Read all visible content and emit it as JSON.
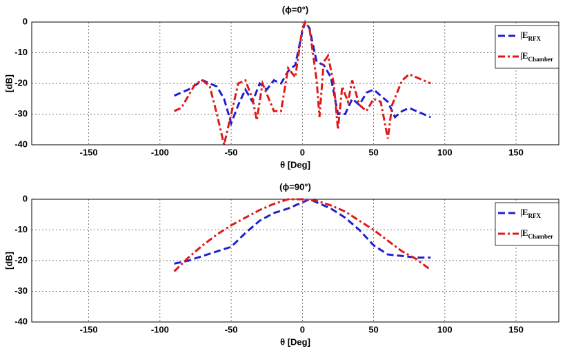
{
  "chart_data": [
    {
      "type": "line",
      "title": "(ϕ=0°)",
      "x_label": "θ [Deg]",
      "y_label": "[dB]",
      "xlim": [
        -190,
        180
      ],
      "ylim": [
        -40,
        0
      ],
      "xticks": [
        -150,
        -100,
        -50,
        0,
        50,
        100,
        150
      ],
      "yticks": [
        0,
        -10,
        -20,
        -30,
        -40
      ],
      "grid": true,
      "legend": "upper right",
      "series": [
        {
          "name": "|E",
          "name_sub": "RFX",
          "color": "#1f1fd0",
          "dash": "10 5",
          "x": [
            -90,
            -80,
            -70,
            -60,
            -55,
            -50,
            -45,
            -40,
            -35,
            -30,
            -25,
            -20,
            -15,
            -10,
            -5,
            0,
            2,
            5,
            10,
            15,
            20,
            25,
            30,
            35,
            40,
            45,
            50,
            55,
            60,
            65,
            70,
            75,
            80,
            90
          ],
          "values": [
            -24,
            -22,
            -19,
            -21,
            -25,
            -33,
            -27,
            -22,
            -26,
            -20,
            -22,
            -19,
            -20,
            -16,
            -14,
            -3,
            0,
            -2,
            -13,
            -14,
            -18,
            -30,
            -30,
            -25,
            -27,
            -23,
            -22,
            -24,
            -26,
            -31,
            -29,
            -28,
            -29,
            -31
          ]
        },
        {
          "name": "|E",
          "name_sub": "Chamber",
          "color": "#e01818",
          "dash": "10 4 3 4",
          "x": [
            -90,
            -85,
            -75,
            -70,
            -65,
            -60,
            -55,
            -50,
            -45,
            -40,
            -35,
            -32,
            -28,
            -20,
            -15,
            -10,
            -5,
            0,
            2,
            5,
            10,
            12,
            15,
            18,
            22,
            25,
            28,
            32,
            35,
            40,
            45,
            50,
            55,
            60,
            63,
            70,
            75,
            80,
            90
          ],
          "values": [
            -29,
            -28,
            -20,
            -19,
            -21,
            -30,
            -40,
            -30,
            -20,
            -19,
            -25,
            -32,
            -20,
            -29,
            -29,
            -15,
            -18,
            -2,
            0,
            -2,
            -19,
            -31,
            -13,
            -11,
            -20,
            -35,
            -21,
            -26,
            -19,
            -27,
            -29,
            -25,
            -26,
            -38,
            -27,
            -19,
            -17,
            -18,
            -20
          ]
        }
      ]
    },
    {
      "type": "line",
      "title": "(ϕ=90°)",
      "x_label": "θ [Deg]",
      "y_label": "[dB]",
      "xlim": [
        -190,
        180
      ],
      "ylim": [
        -40,
        0
      ],
      "xticks": [
        -150,
        -100,
        -50,
        0,
        50,
        100,
        150
      ],
      "yticks": [
        0,
        -10,
        -20,
        -30,
        -40
      ],
      "grid": true,
      "legend": "upper right",
      "series": [
        {
          "name": "|E",
          "name_sub": "RFX",
          "color": "#1f1fd0",
          "dash": "10 5",
          "x": [
            -90,
            -80,
            -70,
            -50,
            -40,
            -30,
            -20,
            -10,
            0,
            5,
            10,
            20,
            30,
            40,
            50,
            60,
            70,
            80,
            90
          ],
          "values": [
            -21,
            -20,
            -18.5,
            -15.5,
            -11,
            -7,
            -4.5,
            -3,
            -1,
            0,
            -1,
            -3,
            -6,
            -10,
            -15,
            -18,
            -18.5,
            -19,
            -19
          ]
        },
        {
          "name": "|E",
          "name_sub": "Chamber",
          "color": "#e01818",
          "dash": "10 4 3 4",
          "x": [
            -90,
            -80,
            -70,
            -60,
            -50,
            -40,
            -30,
            -20,
            -10,
            0,
            10,
            20,
            30,
            40,
            50,
            60,
            70,
            80,
            90
          ],
          "values": [
            -23.5,
            -19,
            -15,
            -11.5,
            -8.5,
            -6,
            -3.5,
            -1.5,
            0,
            0,
            -0.5,
            -2,
            -4,
            -7,
            -10,
            -13.5,
            -17,
            -19.5,
            -23
          ]
        }
      ]
    }
  ]
}
